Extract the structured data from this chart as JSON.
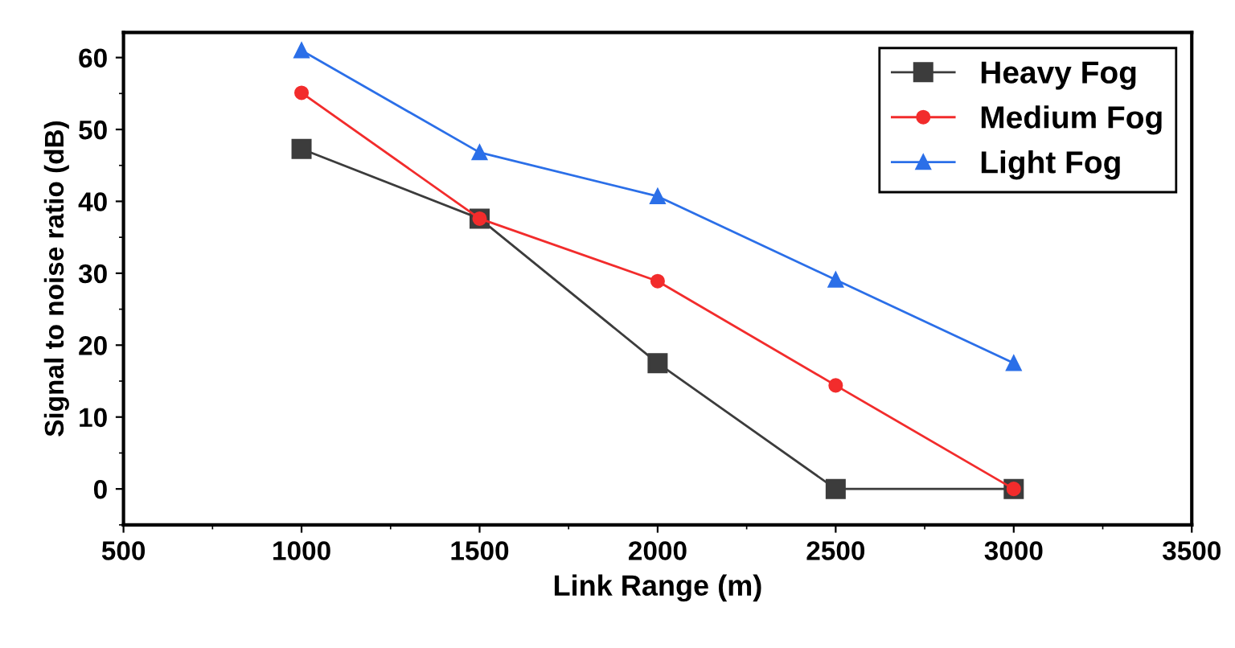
{
  "chart_data": {
    "type": "line",
    "xlabel": "Link Range (m)",
    "ylabel": "Signal to noise ratio (dB)",
    "x": [
      1000,
      1500,
      2000,
      2500,
      3000
    ],
    "series": [
      {
        "name": "Heavy Fog",
        "color": "#3c3c3c",
        "marker": "square",
        "values": [
          47.3,
          37.6,
          17.5,
          0,
          0
        ]
      },
      {
        "name": "Medium Fog",
        "color": "#f22c2c",
        "marker": "circle",
        "values": [
          55.1,
          37.6,
          28.9,
          14.4,
          0
        ]
      },
      {
        "name": "Light Fog",
        "color": "#2b6fe8",
        "marker": "triangle",
        "values": [
          61,
          46.8,
          40.7,
          29.1,
          17.5
        ]
      }
    ],
    "xlim": [
      500,
      3500
    ],
    "xticks": [
      500,
      1000,
      1500,
      2000,
      2500,
      3000,
      3500
    ],
    "ylim": [
      -5,
      63.5
    ],
    "yticks": [
      0,
      10,
      20,
      30,
      40,
      50,
      60
    ],
    "grid": false,
    "legend": "top right",
    "line_style": "solid"
  }
}
